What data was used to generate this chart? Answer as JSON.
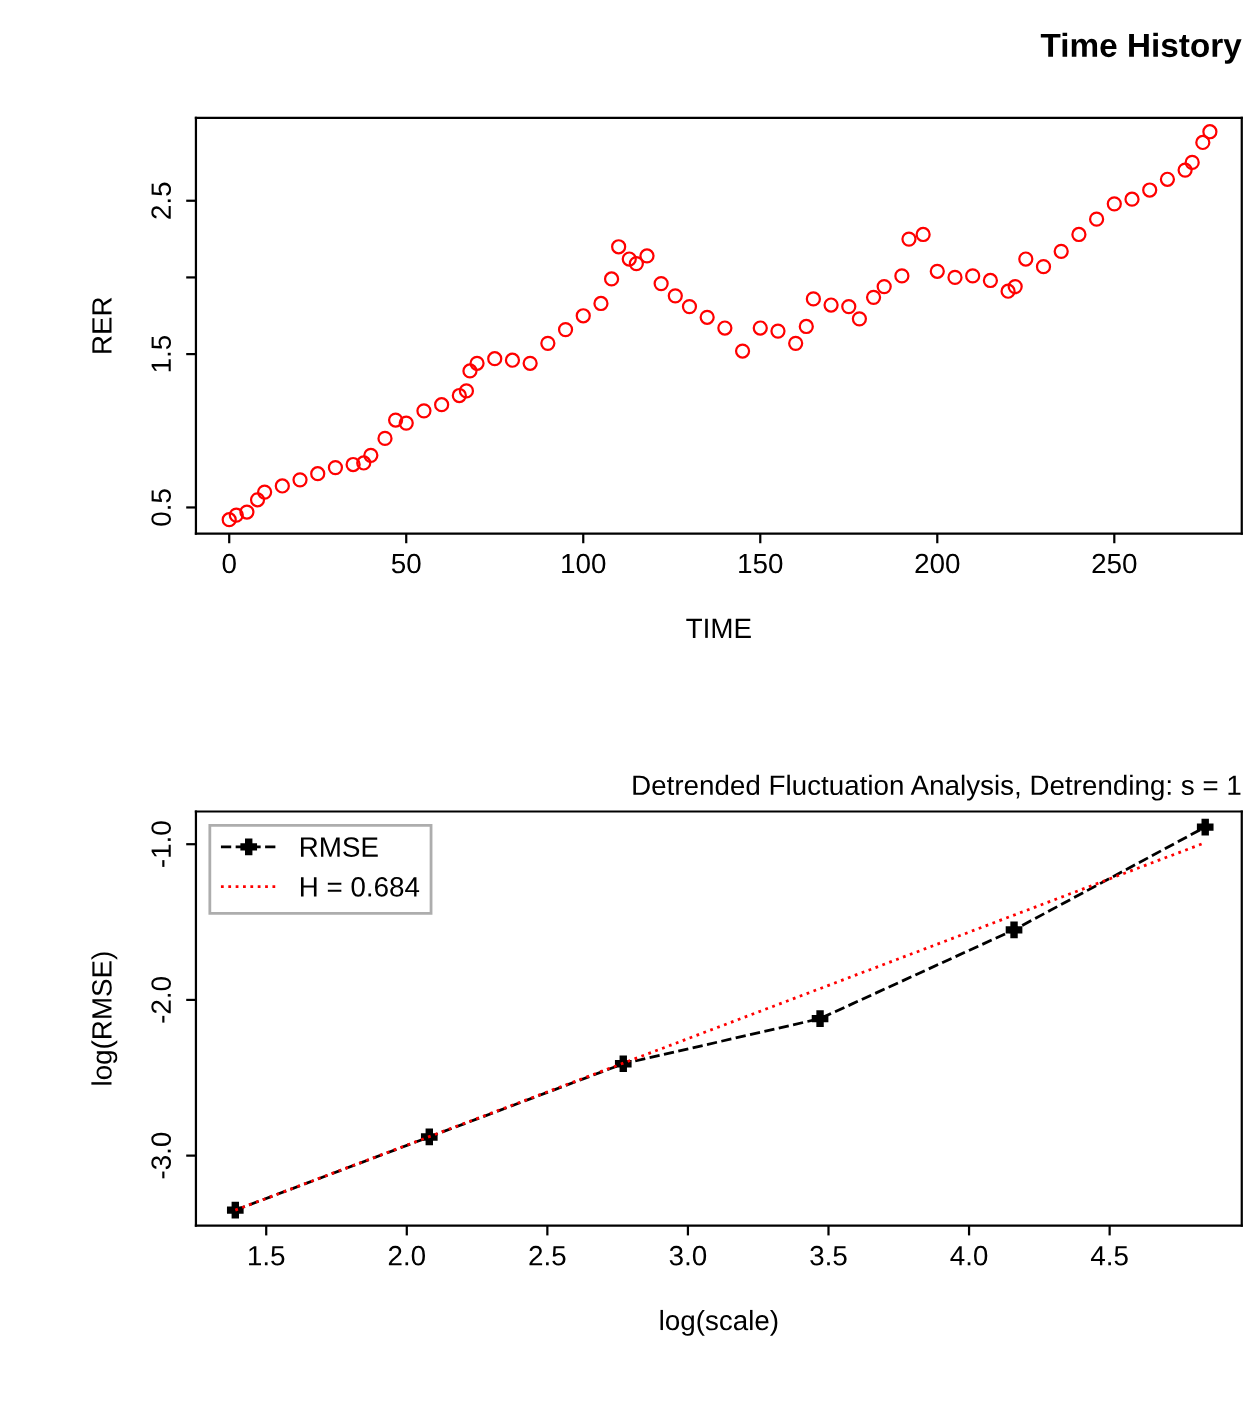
{
  "chart_data": [
    {
      "type": "scatter",
      "title": "Time History",
      "xlabel": "TIME",
      "ylabel": "RER",
      "marker": "circle",
      "grid": false,
      "xlim": [
        -9.4,
        286
      ],
      "xticks": [
        0,
        50,
        100,
        150,
        200,
        250
      ],
      "ylim": [
        0.33,
        3.04
      ],
      "yticks": [
        0.5,
        1.5,
        {
          "value": 2.0,
          "label": null
        },
        2.5
      ],
      "x": [
        0,
        2,
        5,
        8,
        10,
        15,
        20,
        25,
        30,
        35,
        38,
        40,
        44,
        47,
        50,
        55,
        60,
        65,
        67,
        68,
        70,
        75,
        80,
        85,
        90,
        95,
        100,
        105,
        108,
        110,
        113,
        115,
        118,
        122,
        126,
        130,
        135,
        140,
        145,
        150,
        155,
        160,
        163,
        165,
        170,
        175,
        178,
        182,
        185,
        190,
        192,
        196,
        200,
        205,
        210,
        215,
        220,
        222,
        225,
        230,
        235,
        240,
        245,
        250,
        255,
        260,
        265,
        270,
        272,
        275,
        277
      ],
      "series": [
        {
          "color": "#ff0000",
          "values": [
            0.42,
            0.45,
            0.47,
            0.55,
            0.6,
            0.64,
            0.68,
            0.72,
            0.76,
            0.78,
            0.79,
            0.84,
            0.95,
            1.07,
            1.05,
            1.13,
            1.17,
            1.23,
            1.26,
            1.39,
            1.44,
            1.47,
            1.46,
            1.44,
            1.57,
            1.66,
            1.75,
            1.83,
            1.99,
            2.2,
            2.12,
            2.09,
            2.14,
            1.96,
            1.88,
            1.81,
            1.74,
            1.67,
            1.52,
            1.67,
            1.65,
            1.57,
            1.68,
            1.86,
            1.82,
            1.81,
            1.73,
            1.87,
            1.94,
            2.01,
            2.25,
            2.28,
            2.04,
            2.0,
            2.01,
            1.98,
            1.91,
            1.94,
            2.12,
            2.07,
            2.17,
            2.28,
            2.38,
            2.48,
            2.51,
            2.57,
            2.64,
            2.7,
            2.75,
            2.88,
            2.95
          ]
        }
      ]
    },
    {
      "type": "line",
      "title": "Detrended Fluctuation Analysis, Detrending: s = 1",
      "xlabel": "log(scale)",
      "ylabel": "log(RMSE)",
      "grid": false,
      "legend": "top left",
      "xlim": [
        1.25,
        4.97
      ],
      "xticks": [
        1.5,
        {
          "value": 2,
          "label": "2.0"
        },
        2.5,
        {
          "value": 3,
          "label": "3.0"
        },
        3.5,
        {
          "value": 4,
          "label": "4.0"
        },
        4.5
      ],
      "ylim": [
        -3.45,
        -0.79
      ],
      "yticks": [
        {
          "value": -3,
          "label": "-3.0"
        },
        {
          "value": -2,
          "label": "-2.0"
        },
        {
          "value": -1,
          "label": "-1.0"
        }
      ],
      "series": [
        {
          "name": "RMSE",
          "color": "#000000",
          "marker": "cross",
          "line_style": "dashed",
          "x": [
            1.39,
            2.08,
            2.77,
            3.47,
            4.16,
            4.84
          ],
          "values": [
            -3.35,
            -2.88,
            -2.41,
            -2.12,
            -1.55,
            -0.89
          ]
        },
        {
          "name": "H = 0.684",
          "color": "#ff0000",
          "marker": "none",
          "line_style": "dotted",
          "x": [
            1.39,
            4.84
          ],
          "values": [
            -3.35,
            -0.99
          ]
        }
      ]
    }
  ]
}
